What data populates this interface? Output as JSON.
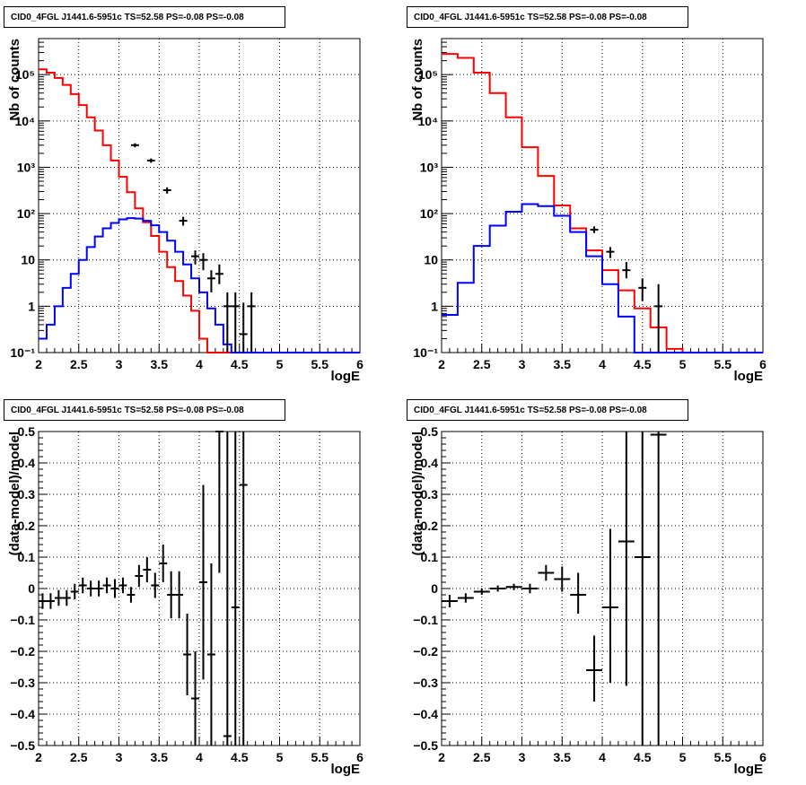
{
  "panels": [
    {
      "id": "tl",
      "title": "CID0_4FGL J1441.6-5951c TS=52.58 PS=-0.08 PS=-0.08",
      "chart_data": {
        "type": "line",
        "xlabel": "logE",
        "ylabel": "Nb of counts",
        "xlim": [
          2,
          6
        ],
        "ylim": [
          0.1,
          600000
        ],
        "yscale": "log",
        "grid": true,
        "xticks": [
          "2",
          "2.5",
          "3",
          "3.5",
          "4",
          "4.5",
          "5",
          "5.5",
          "6"
        ],
        "yticks": [
          {
            "v": 0.1,
            "t": "10⁻¹"
          },
          {
            "v": 1,
            "t": "1"
          },
          {
            "v": 10,
            "t": "10"
          },
          {
            "v": 100,
            "t": "10²"
          },
          {
            "v": 1000,
            "t": "10³"
          },
          {
            "v": 10000,
            "t": "10⁴"
          },
          {
            "v": 100000,
            "t": "10⁵"
          }
        ],
        "bin_edges": [
          2.0,
          2.1,
          2.2,
          2.3,
          2.4,
          2.5,
          2.6,
          2.7,
          2.8,
          2.9,
          3.0,
          3.1,
          3.2,
          3.3,
          3.4,
          3.5,
          3.6,
          3.7,
          3.8,
          3.9,
          4.0,
          4.1,
          4.2,
          4.3,
          4.4,
          4.5,
          4.6,
          4.7,
          4.8,
          4.9,
          5.0,
          5.1,
          5.2,
          5.3,
          5.4,
          5.5,
          5.6,
          5.7,
          5.8,
          5.9,
          6.0
        ],
        "series": [
          {
            "color": "#ff0000",
            "kind": "step",
            "values": [
              130000,
              110000,
              85000,
              60000,
              38000,
              22000,
              12000,
              6200,
              3000,
              1400,
              620,
              290,
              130,
              65,
              33,
              15,
              7,
              3.5,
              1.7,
              0.8,
              0.2,
              0.1,
              0.1,
              0.1,
              0.1,
              0.1,
              0.1,
              0.1,
              0.1,
              0.1,
              0.1,
              0.1,
              0.1,
              0.1,
              0.1,
              0.1,
              0.1,
              0.1,
              0.1,
              0.1
            ]
          },
          {
            "color": "#0000ff",
            "kind": "step",
            "values": [
              0.2,
              0.4,
              1.0,
              2.5,
              5,
              10,
              19,
              32,
              48,
              63,
              75,
              80,
              78,
              70,
              56,
              40,
              26,
              15,
              8,
              4,
              2,
              0.9,
              0.4,
              0.15,
              0.1,
              0.1,
              0.1,
              0.1,
              0.1,
              0.1,
              0.1,
              0.1,
              0.1,
              0.1,
              0.1,
              0.1,
              0.1,
              0.1,
              0.1,
              0.1
            ]
          },
          {
            "color": "#000000",
            "kind": "points",
            "points": [
              [
                3.2,
                3000,
                2700,
                3300
              ],
              [
                3.4,
                1400,
                1250,
                1550
              ],
              [
                3.6,
                320,
                270,
                370
              ],
              [
                3.8,
                70,
                55,
                85
              ],
              [
                3.95,
                12,
                8,
                16
              ],
              [
                4.05,
                10,
                6,
                14
              ],
              [
                4.15,
                4,
                2,
                6
              ],
              [
                4.25,
                5,
                3,
                8
              ],
              [
                4.35,
                1,
                0.1,
                2
              ],
              [
                4.45,
                1,
                0.1,
                2
              ],
              [
                4.55,
                0.25,
                0.1,
                1.2
              ],
              [
                4.65,
                1,
                0.1,
                2
              ]
            ]
          }
        ]
      }
    },
    {
      "id": "tr",
      "title": "CID0_4FGL J1441.6-5951c TS=52.58 PS=-0.08 PS=-0.08",
      "chart_data": {
        "type": "line",
        "xlabel": "logE",
        "ylabel": "Nb of counts",
        "xlim": [
          2,
          6
        ],
        "ylim": [
          0.1,
          600000
        ],
        "yscale": "log",
        "grid": true,
        "xticks": [
          "2",
          "2.5",
          "3",
          "3.5",
          "4",
          "4.5",
          "5",
          "5.5",
          "6"
        ],
        "yticks": [
          {
            "v": 0.1,
            "t": "10⁻¹"
          },
          {
            "v": 1,
            "t": "1"
          },
          {
            "v": 10,
            "t": "10"
          },
          {
            "v": 100,
            "t": "10²"
          },
          {
            "v": 1000,
            "t": "10³"
          },
          {
            "v": 10000,
            "t": "10⁴"
          },
          {
            "v": 100000,
            "t": "10⁵"
          }
        ],
        "bin_edges": [
          2.0,
          2.2,
          2.4,
          2.6,
          2.8,
          3.0,
          3.2,
          3.4,
          3.6,
          3.8,
          4.0,
          4.2,
          4.4,
          4.6,
          4.8,
          5.0,
          5.2,
          5.4,
          5.6,
          5.8,
          6.0
        ],
        "series": [
          {
            "color": "#ff0000",
            "kind": "step",
            "values": [
              280000,
              230000,
              110000,
              40000,
              12000,
              2700,
              650,
              150,
              48,
              16,
              6,
              2.2,
              0.9,
              0.35,
              0.12,
              0.1,
              0.1,
              0.1,
              0.1,
              0.1
            ]
          },
          {
            "color": "#0000ff",
            "kind": "step",
            "values": [
              0.65,
              3.2,
              20,
              55,
              110,
              160,
              145,
              90,
              40,
              12,
              3,
              0.6,
              0.1,
              0.1,
              0.1,
              0.1,
              0.1,
              0.1,
              0.1,
              0.1
            ]
          },
          {
            "color": "#000000",
            "kind": "points",
            "points": [
              [
                3.9,
                45,
                38,
                53
              ],
              [
                4.1,
                15,
                11,
                19
              ],
              [
                4.3,
                6,
                4,
                9
              ],
              [
                4.5,
                2.5,
                1.3,
                4
              ],
              [
                4.7,
                1,
                0.1,
                3
              ]
            ]
          }
        ]
      }
    },
    {
      "id": "bl",
      "title": "CID0_4FGL J1441.6-5951c TS=52.58 PS=-0.08 PS=-0.08",
      "chart_data": {
        "type": "scatter",
        "xlabel": "logE",
        "ylabel": "(data-model)/model",
        "xlim": [
          2,
          6
        ],
        "ylim": [
          -0.5,
          0.5
        ],
        "yscale": "linear",
        "grid": true,
        "xticks": [
          "2",
          "2.5",
          "3",
          "3.5",
          "4",
          "4.5",
          "5",
          "5.5",
          "6"
        ],
        "yticks": [
          {
            "v": -0.5,
            "t": "−0.5"
          },
          {
            "v": -0.4,
            "t": "−0.4"
          },
          {
            "v": -0.3,
            "t": "−0.3"
          },
          {
            "v": -0.2,
            "t": "−0.2"
          },
          {
            "v": -0.1,
            "t": "−0.1"
          },
          {
            "v": 0,
            "t": "0"
          },
          {
            "v": 0.1,
            "t": "0.1"
          },
          {
            "v": 0.2,
            "t": "0.2"
          },
          {
            "v": 0.3,
            "t": "0.3"
          },
          {
            "v": 0.4,
            "t": "0.4"
          },
          {
            "v": 0.5,
            "t": "0.5"
          }
        ],
        "xhalf": 0.05,
        "points": [
          [
            2.05,
            -0.04,
            -0.065,
            -0.015
          ],
          [
            2.15,
            -0.04,
            -0.065,
            -0.015
          ],
          [
            2.25,
            -0.03,
            -0.055,
            -0.005
          ],
          [
            2.35,
            -0.03,
            -0.055,
            -0.005
          ],
          [
            2.45,
            -0.01,
            -0.035,
            0.015
          ],
          [
            2.55,
            0.01,
            -0.015,
            0.035
          ],
          [
            2.65,
            0.0,
            -0.025,
            0.025
          ],
          [
            2.75,
            0.0,
            -0.025,
            0.025
          ],
          [
            2.85,
            0.01,
            -0.015,
            0.035
          ],
          [
            2.95,
            0.0,
            -0.03,
            0.03
          ],
          [
            3.05,
            0.01,
            -0.015,
            0.035
          ],
          [
            3.15,
            -0.02,
            -0.045,
            0.005
          ],
          [
            3.25,
            0.04,
            0.005,
            0.075
          ],
          [
            3.35,
            0.06,
            0.02,
            0.1
          ],
          [
            3.45,
            0.01,
            -0.03,
            0.05
          ],
          [
            3.55,
            0.08,
            0.02,
            0.14
          ],
          [
            3.65,
            -0.02,
            -0.095,
            0.055
          ],
          [
            3.75,
            -0.02,
            -0.095,
            0.055
          ],
          [
            3.85,
            -0.21,
            -0.34,
            -0.08
          ],
          [
            3.95,
            -0.35,
            -0.5,
            -0.2
          ],
          [
            4.05,
            0.02,
            -0.29,
            0.33
          ],
          [
            4.15,
            -0.21,
            -0.5,
            0.08
          ],
          [
            4.25,
            0.5,
            0.05,
            0.5
          ],
          [
            4.35,
            -0.47,
            -0.5,
            0.5
          ],
          [
            4.45,
            -0.06,
            -0.5,
            0.5
          ],
          [
            4.55,
            0.33,
            -0.5,
            0.5
          ]
        ]
      }
    },
    {
      "id": "br",
      "title": "CID0_4FGL J1441.6-5951c TS=52.58 PS=-0.08 PS=-0.08",
      "chart_data": {
        "type": "scatter",
        "xlabel": "logE",
        "ylabel": "(data-model)/model",
        "xlim": [
          2,
          6
        ],
        "ylim": [
          -0.5,
          0.5
        ],
        "yscale": "linear",
        "grid": true,
        "xticks": [
          "2",
          "2.5",
          "3",
          "3.5",
          "4",
          "4.5",
          "5",
          "5.5",
          "6"
        ],
        "yticks": [
          {
            "v": -0.5,
            "t": "−0.5"
          },
          {
            "v": -0.4,
            "t": "−0.4"
          },
          {
            "v": -0.3,
            "t": "−0.3"
          },
          {
            "v": -0.2,
            "t": "−0.2"
          },
          {
            "v": -0.1,
            "t": "−0.1"
          },
          {
            "v": 0,
            "t": "0"
          },
          {
            "v": 0.1,
            "t": "0.1"
          },
          {
            "v": 0.2,
            "t": "0.2"
          },
          {
            "v": 0.3,
            "t": "0.3"
          },
          {
            "v": 0.4,
            "t": "0.4"
          },
          {
            "v": 0.5,
            "t": "0.5"
          }
        ],
        "xhalf": 0.1,
        "points": [
          [
            2.1,
            -0.04,
            -0.06,
            -0.02
          ],
          [
            2.3,
            -0.03,
            -0.045,
            -0.015
          ],
          [
            2.5,
            -0.01,
            -0.02,
            0.0
          ],
          [
            2.7,
            0.0,
            -0.01,
            0.01
          ],
          [
            2.9,
            0.005,
            -0.005,
            0.015
          ],
          [
            3.1,
            0.0,
            -0.015,
            0.015
          ],
          [
            3.3,
            0.05,
            0.025,
            0.075
          ],
          [
            3.5,
            0.03,
            -0.01,
            0.07
          ],
          [
            3.7,
            -0.02,
            -0.08,
            0.05
          ],
          [
            3.9,
            -0.26,
            -0.36,
            -0.15
          ],
          [
            4.1,
            -0.06,
            -0.3,
            0.19
          ],
          [
            4.3,
            0.15,
            -0.31,
            0.5
          ],
          [
            4.5,
            0.1,
            -0.5,
            0.5
          ],
          [
            4.7,
            0.49,
            -0.5,
            0.5
          ]
        ]
      }
    }
  ]
}
